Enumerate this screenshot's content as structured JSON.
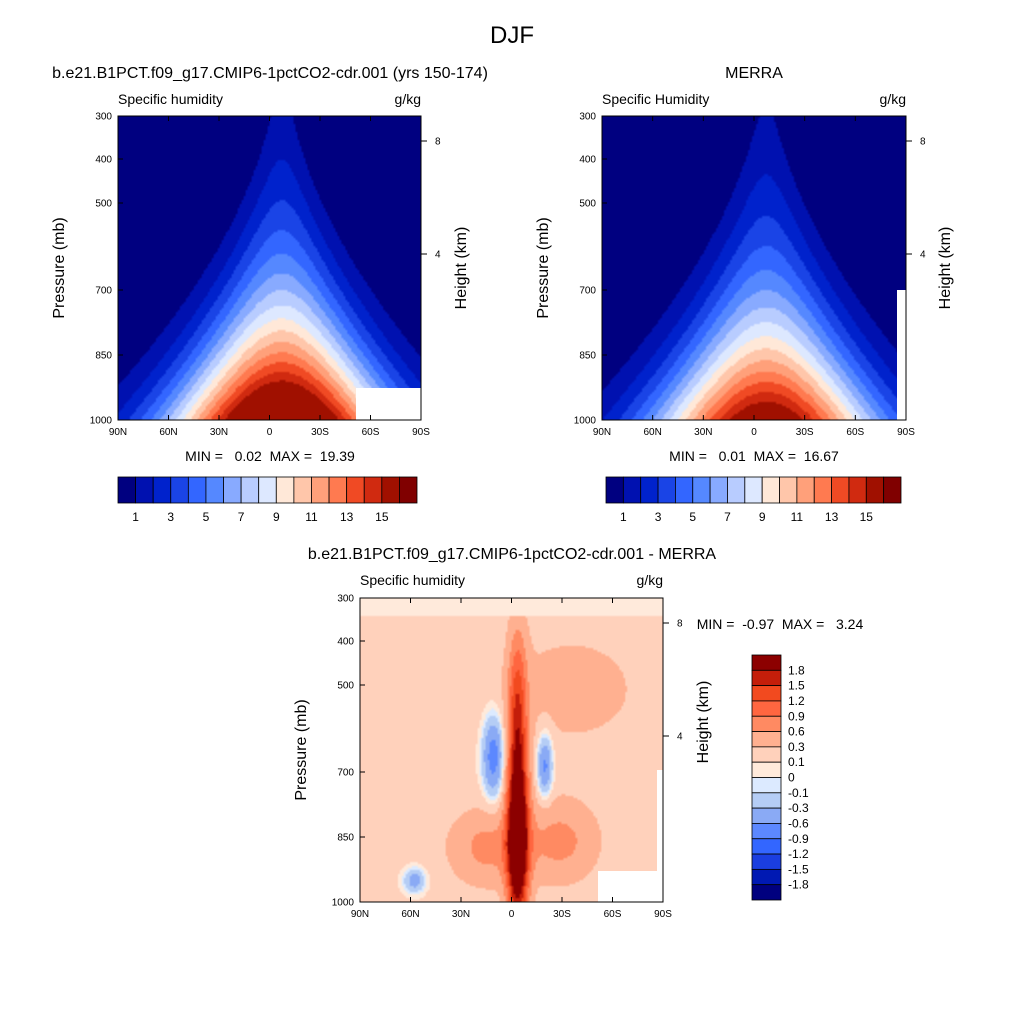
{
  "figure": {
    "title": "DJF",
    "colors": {
      "background": "#ffffff",
      "mask": "#ffffff",
      "frame": "#000000"
    }
  },
  "chart_data": [
    {
      "type": "heatmap",
      "title": "b.e21.B1PCT.f09_g17.CMIP6-1pctCO2-cdr.001 (yrs 150-174)",
      "subtitle_left": "Specific humidity",
      "subtitle_right": "g/kg",
      "xlabel": "",
      "ylabel": "Pressure (mb)",
      "ylabel_right": "Height (km)",
      "x_ticks": [
        "90N",
        "60N",
        "30N",
        "0",
        "30S",
        "60S",
        "90S"
      ],
      "y_ticks": [
        "300",
        "400",
        "500",
        "700",
        "850",
        "1000"
      ],
      "y_ticks_right": [
        "8",
        "4"
      ],
      "stats": "MIN =   0.02  MAX =  19.39",
      "min": 0.02,
      "max": 19.39,
      "field": {
        "peak": 19.39,
        "center_lat": -5
      },
      "levels": [
        1,
        2,
        3,
        4,
        5,
        6,
        7,
        8,
        9,
        10,
        11,
        12,
        13,
        14,
        15
      ],
      "colorbar_labels": [
        "1",
        "3",
        "5",
        "7",
        "9",
        "11",
        "13",
        "15"
      ],
      "colors": [
        "#000080",
        "#0011b0",
        "#0022cc",
        "#1a44e6",
        "#3366ff",
        "#5588ff",
        "#88aaff",
        "#b8ccff",
        "#dde8ff",
        "#ffe8d8",
        "#ffc6aa",
        "#ffa07a",
        "#ff7a50",
        "#f04a24",
        "#d02a10",
        "#a01000",
        "#800000"
      ]
    },
    {
      "type": "heatmap",
      "title": "MERRA",
      "subtitle_left": "Specific Humidity",
      "subtitle_right": "g/kg",
      "xlabel": "",
      "ylabel": "Pressure (mb)",
      "ylabel_right": "Height (km)",
      "x_ticks": [
        "90N",
        "60N",
        "30N",
        "0",
        "30S",
        "60S",
        "90S"
      ],
      "y_ticks": [
        "300",
        "400",
        "500",
        "700",
        "850",
        "1000"
      ],
      "y_ticks_right": [
        "8",
        "4"
      ],
      "stats": "MIN =   0.01  MAX =  16.67",
      "min": 0.01,
      "max": 16.67,
      "field": {
        "peak": 16.67,
        "center_lat": -5
      },
      "levels": [
        1,
        2,
        3,
        4,
        5,
        6,
        7,
        8,
        9,
        10,
        11,
        12,
        13,
        14,
        15
      ],
      "colorbar_labels": [
        "1",
        "3",
        "5",
        "7",
        "9",
        "11",
        "13",
        "15"
      ],
      "colors": [
        "#000080",
        "#0011b0",
        "#0022cc",
        "#1a44e6",
        "#3366ff",
        "#5588ff",
        "#88aaff",
        "#b8ccff",
        "#dde8ff",
        "#ffe8d8",
        "#ffc6aa",
        "#ffa07a",
        "#ff7a50",
        "#f04a24",
        "#d02a10",
        "#a01000",
        "#800000"
      ]
    },
    {
      "type": "heatmap",
      "title": "b.e21.B1PCT.f09_g17.CMIP6-1pctCO2-cdr.001 - MERRA",
      "subtitle_left": "Specific humidity",
      "subtitle_right": "g/kg",
      "xlabel": "",
      "ylabel": "Pressure (mb)",
      "ylabel_right": "Height (km)",
      "x_ticks": [
        "90N",
        "60N",
        "30N",
        "0",
        "30S",
        "60S",
        "90S"
      ],
      "y_ticks": [
        "300",
        "400",
        "500",
        "700",
        "850",
        "1000"
      ],
      "y_ticks_right": [
        "8",
        "4"
      ],
      "stats": "MIN =  -0.97  MAX =   3.24",
      "min": -0.97,
      "max": 3.24,
      "levels": [
        -1.8,
        -1.5,
        -1.2,
        -0.9,
        -0.6,
        -0.3,
        -0.1,
        0,
        0.1,
        0.3,
        0.6,
        0.9,
        1.2,
        1.5,
        1.8
      ],
      "colorbar_labels": [
        "1.8",
        "1.5",
        "1.2",
        "0.9",
        "0.6",
        "0.3",
        "0.1",
        "0",
        "-0.1",
        "-0.3",
        "-0.6",
        "-0.9",
        "-1.2",
        "-1.5",
        "-1.8"
      ],
      "colors": [
        "#00007f",
        "#0019b3",
        "#1a3ee0",
        "#3366ff",
        "#5c88ff",
        "#8aaaf5",
        "#b5cdf5",
        "#dceaff",
        "#ffeadb",
        "#ffd1bb",
        "#ffb090",
        "#ff8a62",
        "#ff6640",
        "#f24a1f",
        "#c41e0a",
        "#8c0000"
      ]
    }
  ]
}
